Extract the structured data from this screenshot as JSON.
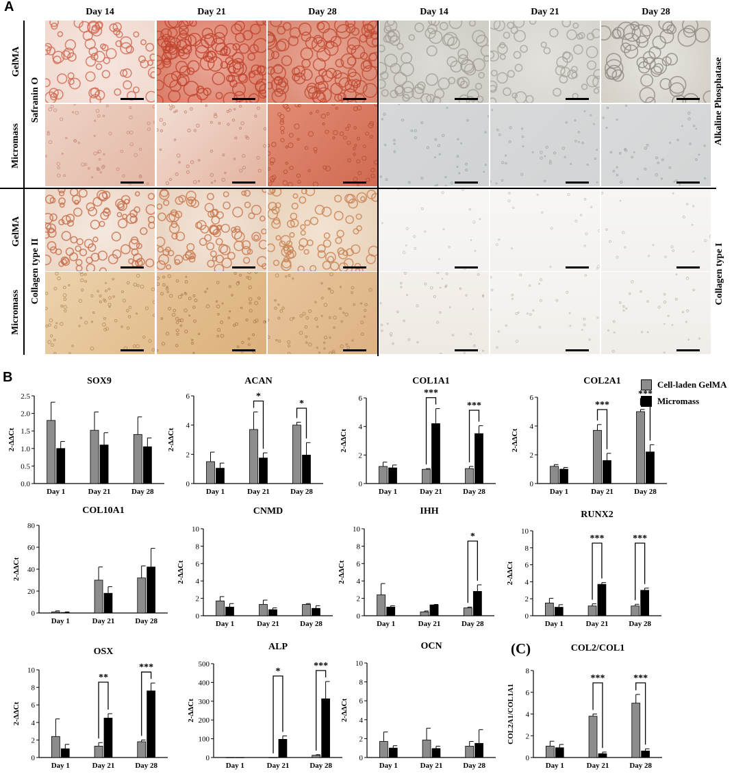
{
  "panel_a": {
    "letter": "A",
    "day_headers": [
      "Day 14",
      "Day 21",
      "Day 28",
      "Day 14",
      "Day 21",
      "Day 28"
    ],
    "left_outer_labels": [
      "GelMA",
      "Micromass",
      "GelMA",
      "Micromass"
    ],
    "left_stain_labels": [
      "Safranin O",
      "Collagen type II"
    ],
    "right_stain_labels": [
      "Alkaline Phosphatase",
      "Collagen type I"
    ]
  },
  "panel_b": {
    "letter": "B"
  },
  "panel_c": {
    "letter": "(C)"
  },
  "legend": {
    "items": [
      {
        "label": "Cell-laden GelMA",
        "color": "#8c8c8c"
      },
      {
        "label": "Micromass",
        "color": "#000000"
      }
    ]
  },
  "colors": {
    "gelma": "#8c8c8c",
    "micromass": "#000000",
    "safranin_light": "#f2dcd2",
    "safranin_dark": "#d9806a",
    "collagen2": "#e9c9a2",
    "alp": "#d8d8d6",
    "collagen1": "#f4f2ef"
  },
  "chart_data": [
    {
      "type": "bar",
      "title": "SOX9",
      "ylabel": "2-ΔΔCt",
      "categories": [
        "Day 1",
        "Day 21",
        "Day 28"
      ],
      "ylim": [
        0,
        2.5
      ],
      "yticks": [
        "0.0",
        "0.5",
        "1.0",
        "1.5",
        "2.0",
        "2.5"
      ],
      "series": [
        {
          "name": "Cell-laden GelMA",
          "values": [
            1.8,
            1.52,
            1.4
          ],
          "errors": [
            0.52,
            0.52,
            0.5
          ]
        },
        {
          "name": "Micromass",
          "values": [
            1.0,
            1.1,
            1.05
          ],
          "errors": [
            0.2,
            0.35,
            0.25
          ]
        }
      ],
      "significance": []
    },
    {
      "type": "bar",
      "title": "ACAN",
      "ylabel": "2-ΔΔCt",
      "categories": [
        "Day 1",
        "Day 21",
        "Day 28"
      ],
      "ylim": [
        0,
        6
      ],
      "yticks": [
        "0",
        "2",
        "4",
        "6"
      ],
      "series": [
        {
          "name": "Cell-laden GelMA",
          "values": [
            1.5,
            3.7,
            4.0
          ],
          "errors": [
            0.65,
            1.2,
            0.2
          ]
        },
        {
          "name": "Micromass",
          "values": [
            1.05,
            1.75,
            1.95
          ],
          "errors": [
            0.35,
            0.35,
            0.85
          ]
        }
      ],
      "significance": [
        {
          "category": 1,
          "label": "*"
        },
        {
          "category": 2,
          "label": "*"
        }
      ]
    },
    {
      "type": "bar",
      "title": "COL1A1",
      "ylabel": "2-ΔΔCt",
      "categories": [
        "Day 1",
        "Day 21",
        "Day 28"
      ],
      "ylim": [
        0,
        6
      ],
      "yticks": [
        "0",
        "2",
        "4",
        "6"
      ],
      "series": [
        {
          "name": "Cell-laden GelMA",
          "values": [
            1.2,
            1.0,
            1.05
          ],
          "errors": [
            0.3,
            0.05,
            0.15
          ]
        },
        {
          "name": "Micromass",
          "values": [
            1.1,
            4.2,
            3.5
          ],
          "errors": [
            0.2,
            1.05,
            0.55
          ]
        }
      ],
      "significance": [
        {
          "category": 1,
          "label": "***"
        },
        {
          "category": 2,
          "label": "***"
        }
      ]
    },
    {
      "type": "bar",
      "title": "COL2A1",
      "ylabel": "2-ΔΔCt",
      "categories": [
        "Day 1",
        "Day 21",
        "Day 28"
      ],
      "ylim": [
        0,
        6
      ],
      "yticks": [
        "0",
        "2",
        "4",
        "6"
      ],
      "series": [
        {
          "name": "Cell-laden GelMA",
          "values": [
            1.2,
            3.7,
            5.0
          ],
          "errors": [
            0.12,
            0.4,
            0.15
          ]
        },
        {
          "name": "Micromass",
          "values": [
            1.0,
            1.6,
            2.2
          ],
          "errors": [
            0.12,
            0.5,
            0.5
          ]
        }
      ],
      "significance": [
        {
          "category": 1,
          "label": "***"
        },
        {
          "category": 2,
          "label": "***"
        }
      ]
    },
    {
      "type": "bar",
      "title": "COL10A1",
      "ylabel": "2-ΔΔCt",
      "categories": [
        "Day 1",
        "Day 21",
        "Day 28"
      ],
      "ylim": [
        0,
        80
      ],
      "yticks": [
        "0",
        "20",
        "40",
        "60",
        "80"
      ],
      "series": [
        {
          "name": "Cell-laden GelMA",
          "values": [
            1.0,
            30.0,
            32.0
          ],
          "errors": [
            1.0,
            12.0,
            11.0
          ]
        },
        {
          "name": "Micromass",
          "values": [
            0.5,
            18.0,
            42.0
          ],
          "errors": [
            0.5,
            6.0,
            17.0
          ]
        }
      ],
      "significance": []
    },
    {
      "type": "bar",
      "title": "CNMD",
      "ylabel": "2-ΔΔCt",
      "categories": [
        "Day 1",
        "Day 21",
        "Day 28"
      ],
      "ylim": [
        0,
        10
      ],
      "yticks": [
        "0",
        "2",
        "4",
        "6",
        "8",
        "10"
      ],
      "series": [
        {
          "name": "Cell-laden GelMA",
          "values": [
            1.7,
            1.3,
            1.3
          ],
          "errors": [
            0.5,
            0.5,
            0.1
          ]
        },
        {
          "name": "Micromass",
          "values": [
            1.0,
            0.7,
            0.85
          ],
          "errors": [
            0.4,
            0.2,
            0.3
          ]
        }
      ],
      "significance": []
    },
    {
      "type": "bar",
      "title": "IHH",
      "ylabel": "2-ΔΔCt",
      "categories": [
        "Day 1",
        "Day 21",
        "Day 28"
      ],
      "ylim": [
        0,
        10
      ],
      "yticks": [
        "0",
        "2",
        "4",
        "6",
        "8",
        "10"
      ],
      "series": [
        {
          "name": "Cell-laden GelMA",
          "values": [
            2.4,
            0.45,
            0.9
          ],
          "errors": [
            1.3,
            0.1,
            0.1
          ]
        },
        {
          "name": "Micromass",
          "values": [
            1.0,
            1.25,
            2.8
          ],
          "errors": [
            0.15,
            0.05,
            0.75
          ]
        }
      ],
      "significance": [
        {
          "category": 2,
          "label": "*"
        }
      ]
    },
    {
      "type": "bar",
      "title": "RUNX2",
      "ylabel": "2-ΔΔCt",
      "categories": [
        "Day 1",
        "Day 21",
        "Day 28"
      ],
      "ylim": [
        0,
        10
      ],
      "yticks": [
        "0",
        "2",
        "4",
        "6",
        "8",
        "10"
      ],
      "series": [
        {
          "name": "Cell-laden GelMA",
          "values": [
            1.5,
            1.15,
            1.15
          ],
          "errors": [
            0.55,
            0.25,
            0.2
          ]
        },
        {
          "name": "Micromass",
          "values": [
            1.0,
            3.7,
            3.0
          ],
          "errors": [
            0.3,
            0.2,
            0.25
          ]
        }
      ],
      "significance": [
        {
          "category": 1,
          "label": "***"
        },
        {
          "category": 2,
          "label": "***"
        }
      ]
    },
    {
      "type": "bar",
      "title": "OSX",
      "ylabel": "2-ΔΔCt",
      "categories": [
        "Day 1",
        "Day 21",
        "Day 28"
      ],
      "ylim": [
        0,
        10
      ],
      "yticks": [
        "0",
        "2",
        "4",
        "6",
        "8",
        "10"
      ],
      "series": [
        {
          "name": "Cell-laden GelMA",
          "values": [
            2.4,
            1.3,
            1.8
          ],
          "errors": [
            2.0,
            0.4,
            0.2
          ]
        },
        {
          "name": "Micromass",
          "values": [
            1.0,
            4.5,
            7.6
          ],
          "errors": [
            0.5,
            0.5,
            0.9
          ]
        }
      ],
      "significance": [
        {
          "category": 1,
          "label": "**"
        },
        {
          "category": 2,
          "label": "***"
        }
      ]
    },
    {
      "type": "bar",
      "title": "ALP",
      "ylabel": "2-ΔΔCt",
      "categories": [
        "Day 1",
        "Day 21",
        "Day 28"
      ],
      "ylim": [
        0,
        500
      ],
      "yticks": [
        "0",
        "100",
        "200",
        "300",
        "400",
        "500"
      ],
      "series": [
        {
          "name": "Cell-laden GelMA",
          "values": [
            0.5,
            0.5,
            12.0
          ],
          "errors": [
            0,
            0,
            3.0
          ]
        },
        {
          "name": "Micromass",
          "values": [
            0.5,
            97.0,
            313.0
          ],
          "errors": [
            0,
            18.0,
            92.0
          ]
        }
      ],
      "significance": [
        {
          "category": 1,
          "label": "*"
        },
        {
          "category": 2,
          "label": "***"
        }
      ]
    },
    {
      "type": "bar",
      "title": "OCN",
      "ylabel": "2-ΔΔCt",
      "categories": [
        "Day 1",
        "Day 21",
        "Day 28"
      ],
      "ylim": [
        0,
        10
      ],
      "yticks": [
        "0",
        "2",
        "4",
        "6",
        "8",
        "10"
      ],
      "series": [
        {
          "name": "Cell-laden GelMA",
          "values": [
            1.7,
            1.85,
            1.2
          ],
          "errors": [
            1.0,
            1.25,
            0.5
          ]
        },
        {
          "name": "Micromass",
          "values": [
            1.0,
            0.95,
            1.5
          ],
          "errors": [
            0.25,
            0.25,
            1.45
          ]
        }
      ],
      "significance": []
    },
    {
      "type": "bar",
      "title": "COL2/COL1",
      "ylabel": "COL2A1/COL1A1",
      "categories": [
        "Day 1",
        "Day 21",
        "Day 28"
      ],
      "ylim": [
        0,
        8
      ],
      "yticks": [
        "0",
        "2",
        "4",
        "6",
        "8"
      ],
      "series": [
        {
          "name": "Cell-laden GelMA",
          "values": [
            1.05,
            3.8,
            5.0
          ],
          "errors": [
            0.45,
            0.2,
            0.8
          ]
        },
        {
          "name": "Micromass",
          "values": [
            0.9,
            0.35,
            0.6
          ],
          "errors": [
            0.3,
            0.15,
            0.2
          ]
        }
      ],
      "significance": [
        {
          "category": 1,
          "label": "***"
        },
        {
          "category": 2,
          "label": "***"
        }
      ]
    }
  ]
}
